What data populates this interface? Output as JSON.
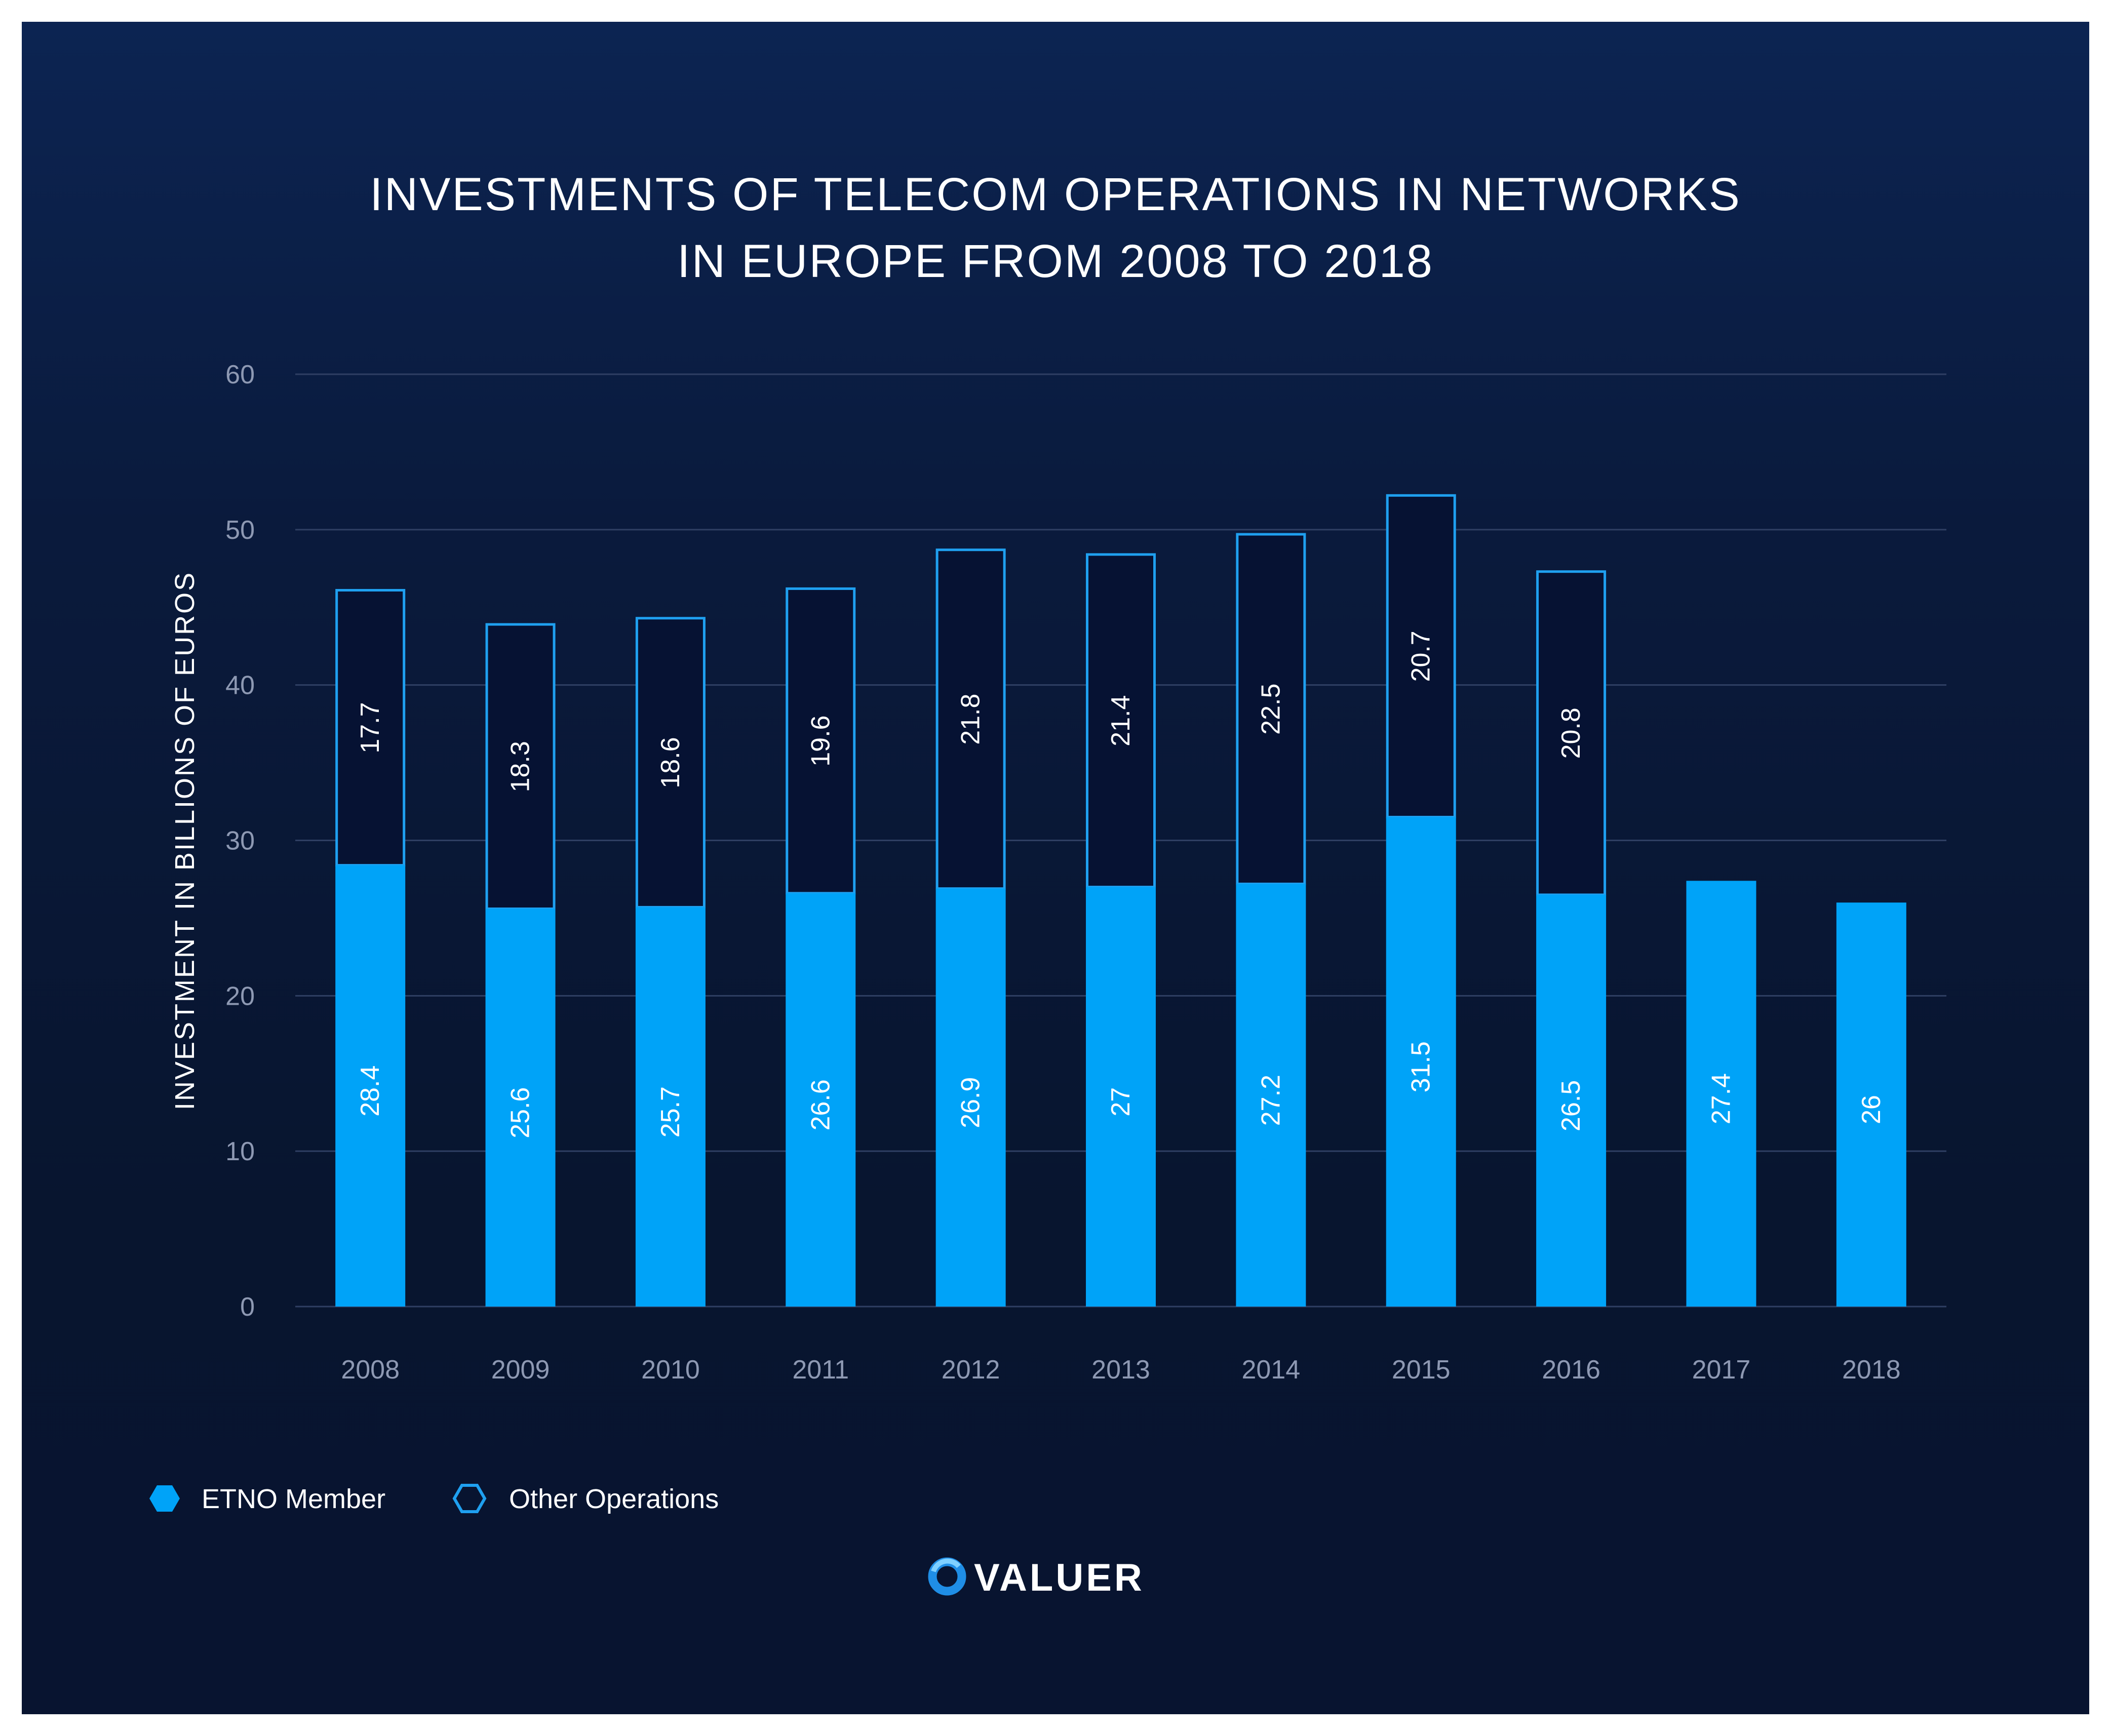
{
  "colors": {
    "etno": "#00a3f8",
    "other_stroke": "#1fa0f0",
    "other_fill": "#061233",
    "grid": "#2f3f63",
    "tick": "#8e99b3",
    "text": "#ffffff"
  },
  "legend_icons": {
    "etno": "filled-hexagon-icon",
    "other": "outline-hexagon-icon"
  },
  "brand": {
    "name": "VALUER",
    "logo_icon": "ring-logo-icon"
  },
  "chart_data": {
    "type": "bar",
    "stacked": true,
    "title_lines": [
      "INVESTMENTS OF TELECOM OPERATIONS IN NETWORKS",
      "IN EUROPE FROM 2008 TO 2018"
    ],
    "xlabel": "",
    "ylabel": "INVESTMENT IN BILLIONS OF EUROS",
    "ylim": [
      0,
      60
    ],
    "yticks": [
      0,
      10,
      20,
      30,
      40,
      50,
      60
    ],
    "grid": true,
    "legend_position": "bottom-left",
    "categories": [
      "2008",
      "2009",
      "2010",
      "2011",
      "2012",
      "2013",
      "2014",
      "2015",
      "2016",
      "2017",
      "2018"
    ],
    "series": [
      {
        "name": "ETNO Member",
        "style": "filled",
        "values": [
          28.4,
          25.6,
          25.7,
          26.6,
          26.9,
          27,
          27.2,
          31.5,
          26.5,
          27.4,
          26
        ]
      },
      {
        "name": "Other Operations",
        "style": "outline",
        "values": [
          17.7,
          18.3,
          18.6,
          19.6,
          21.8,
          21.4,
          22.5,
          20.7,
          20.8,
          null,
          null
        ]
      }
    ]
  }
}
